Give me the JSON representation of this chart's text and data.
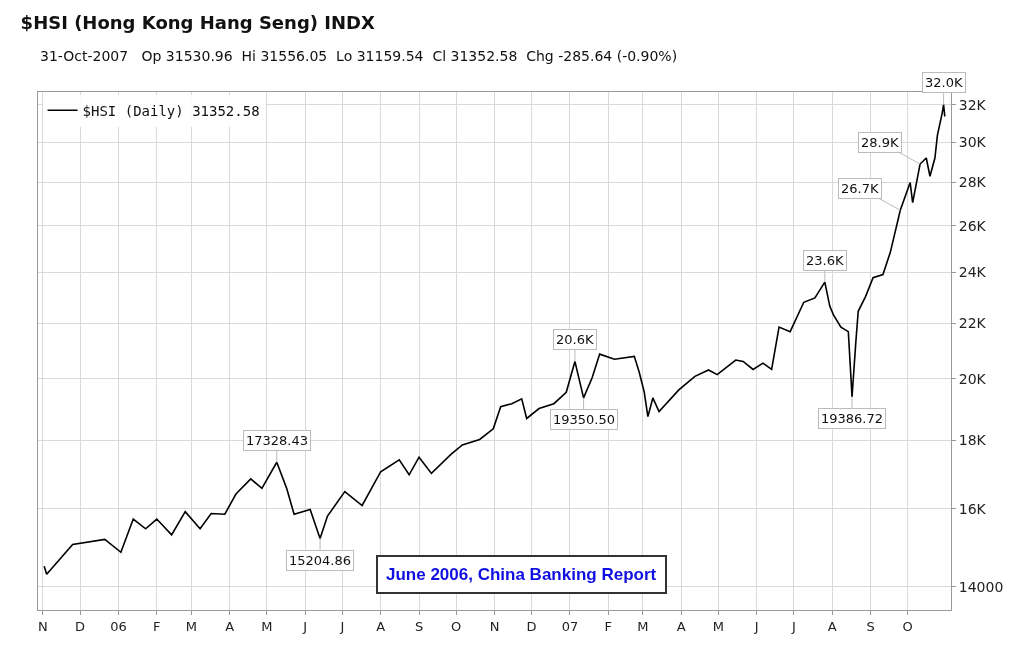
{
  "chart_data": {
    "type": "line",
    "title": "$HSI (Hong Kong Hang Seng) INDX",
    "subtitle": "31-Oct-2007   Op 31530.96  Hi 31556.05  Lo 31159.54  Cl 31352.58  Chg -285.64 (-0.90%)",
    "x": [
      "2005-11-02",
      "2005-11-04",
      "2005-11-25",
      "2005-12-21",
      "2006-01-03",
      "2006-01-13",
      "2006-01-23",
      "2006-02-01",
      "2006-02-13",
      "2006-02-24",
      "2006-03-08",
      "2006-03-17",
      "2006-03-28",
      "2006-04-06",
      "2006-04-18",
      "2006-04-27",
      "2006-05-09",
      "2006-05-17",
      "2006-05-23",
      "2006-06-05",
      "2006-06-13",
      "2006-06-19",
      "2006-07-03",
      "2006-07-17",
      "2006-08-01",
      "2006-08-16",
      "2006-08-24",
      "2006-09-01",
      "2006-09-11",
      "2006-09-27",
      "2006-10-06",
      "2006-10-20",
      "2006-10-31",
      "2006-11-06",
      "2006-11-15",
      "2006-11-23",
      "2006-11-27",
      "2006-12-07",
      "2006-12-19",
      "2006-12-29",
      "2007-01-05",
      "2007-01-12",
      "2007-01-19",
      "2007-01-25",
      "2007-02-06",
      "2007-02-22",
      "2007-02-26",
      "2007-03-02",
      "2007-03-05",
      "2007-03-09",
      "2007-03-14",
      "2007-03-30",
      "2007-04-12",
      "2007-04-23",
      "2007-04-30",
      "2007-05-15",
      "2007-05-21",
      "2007-05-29",
      "2007-06-06",
      "2007-06-13",
      "2007-06-19",
      "2007-06-28",
      "2007-07-09",
      "2007-07-18",
      "2007-07-26",
      "2007-07-30",
      "2007-08-02",
      "2007-08-08",
      "2007-08-14",
      "2007-08-17",
      "2007-08-20",
      "2007-08-22",
      "2007-08-28",
      "2007-09-03",
      "2007-09-11",
      "2007-09-17",
      "2007-09-25",
      "2007-10-03",
      "2007-10-05",
      "2007-10-11",
      "2007-10-16",
      "2007-10-19",
      "2007-10-23",
      "2007-10-25",
      "2007-10-29",
      "2007-10-30",
      "2007-10-31"
    ],
    "series": [
      {
        "name": "$HSI (Daily) 31352.58",
        "color": "#000000",
        "values": [
          14500,
          14300,
          15050,
          15180,
          14850,
          15720,
          15460,
          15720,
          15300,
          15920,
          15460,
          15870,
          15850,
          16410,
          16840,
          16570,
          17328.43,
          16570,
          15850,
          15980,
          15204.86,
          15800,
          16480,
          16090,
          17050,
          17400,
          16960,
          17480,
          17000,
          17570,
          17850,
          18020,
          18350,
          19060,
          19160,
          19320,
          18680,
          19000,
          19160,
          19540,
          20600,
          19350.5,
          20040,
          20860,
          20680,
          20780,
          20220,
          19550,
          18740,
          19350,
          18900,
          19620,
          20080,
          20300,
          20140,
          20650,
          20600,
          20320,
          20540,
          20320,
          21850,
          21680,
          22800,
          22970,
          23600,
          22650,
          22310,
          21850,
          21680,
          19386.72,
          21250,
          22450,
          23030,
          23780,
          23910,
          24850,
          26700,
          28000,
          27050,
          28900,
          29200,
          28300,
          29200,
          30360,
          31580,
          32000,
          31352.58
        ]
      }
    ],
    "log": "y",
    "xlim": [
      "2005-10-28",
      "2007-11-05"
    ],
    "xticks": [
      {
        "value": "2005-11-01",
        "label": "N"
      },
      {
        "value": "2005-12-01",
        "label": "D"
      },
      {
        "value": "2006-01-01",
        "label": "06"
      },
      {
        "value": "2006-02-01",
        "label": "F"
      },
      {
        "value": "2006-03-01",
        "label": "M"
      },
      {
        "value": "2006-04-01",
        "label": "A"
      },
      {
        "value": "2006-05-01",
        "label": "M"
      },
      {
        "value": "2006-06-01",
        "label": "J"
      },
      {
        "value": "2006-07-01",
        "label": "J"
      },
      {
        "value": "2006-08-01",
        "label": "A"
      },
      {
        "value": "2006-09-01",
        "label": "S"
      },
      {
        "value": "2006-10-01",
        "label": "O"
      },
      {
        "value": "2006-11-01",
        "label": "N"
      },
      {
        "value": "2006-12-01",
        "label": "D"
      },
      {
        "value": "2007-01-01",
        "label": "07"
      },
      {
        "value": "2007-02-01",
        "label": "F"
      },
      {
        "value": "2007-03-01",
        "label": "M"
      },
      {
        "value": "2007-04-01",
        "label": "A"
      },
      {
        "value": "2007-05-01",
        "label": "M"
      },
      {
        "value": "2007-06-01",
        "label": "J"
      },
      {
        "value": "2007-07-01",
        "label": "J"
      },
      {
        "value": "2007-08-01",
        "label": "A"
      },
      {
        "value": "2007-09-01",
        "label": "S"
      },
      {
        "value": "2007-10-01",
        "label": "O"
      }
    ],
    "ylim": [
      13450,
      32700
    ],
    "yticks": [
      14000,
      {
        "value": 16000,
        "label": "16K"
      },
      {
        "value": 18000,
        "label": "18K"
      },
      {
        "value": 20000,
        "label": "20K"
      },
      {
        "value": 22000,
        "label": "22K"
      },
      {
        "value": 24000,
        "label": "24K"
      },
      {
        "value": 26000,
        "label": "26K"
      },
      {
        "value": 28000,
        "label": "28K"
      },
      {
        "value": 30000,
        "label": "30K"
      },
      {
        "value": 32000,
        "label": "32K"
      }
    ],
    "grid": true,
    "legend": "top left",
    "annotations": [
      {
        "text": "17328.43",
        "x": "2006-05-09",
        "y": 17328.43
      },
      {
        "text": "15204.86",
        "x": "2006-06-13",
        "y": 15204.86
      },
      {
        "text": "20.6K",
        "x": "2007-01-05",
        "y": 20600
      },
      {
        "text": "19350.50",
        "x": "2007-01-12",
        "y": 19350.5
      },
      {
        "text": "23.6K",
        "x": "2007-07-26",
        "y": 23600
      },
      {
        "text": "19386.72",
        "x": "2007-08-17",
        "y": 19386.72
      },
      {
        "text": "26.7K",
        "x": "2007-09-25",
        "y": 26700
      },
      {
        "text": "28.9K",
        "x": "2007-10-11",
        "y": 28900
      },
      {
        "text": "32.0K",
        "x": "2007-10-30",
        "y": 32000
      },
      "June 2006, China Banking Report"
    ]
  }
}
